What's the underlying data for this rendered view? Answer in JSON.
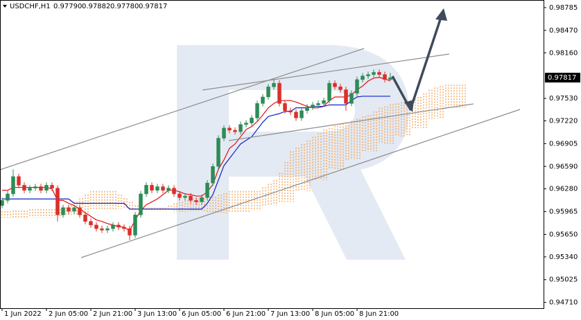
{
  "chart_data": {
    "type": "candlestick",
    "title": "USDCHF,H1",
    "header_values": [
      "0.97790",
      "0.97882",
      "0.97780",
      "0.97817"
    ],
    "up_color": "#2e8b57",
    "down_color": "#d9302a",
    "ylim": [
      0.9463,
      0.9889
    ],
    "yticks": [
      {
        "value": 0.98785,
        "label": "0.98785"
      },
      {
        "value": 0.9847,
        "label": "0.98470"
      },
      {
        "value": 0.9816,
        "label": "0.98160"
      },
      {
        "value": 0.9753,
        "label": "0.97530"
      },
      {
        "value": 0.9722,
        "label": "0.97220"
      },
      {
        "value": 0.96905,
        "label": "0.96905"
      },
      {
        "value": 0.9659,
        "label": "0.96590"
      },
      {
        "value": 0.9628,
        "label": "0.96280"
      },
      {
        "value": 0.95965,
        "label": "0.95965"
      },
      {
        "value": 0.9565,
        "label": "0.95650"
      },
      {
        "value": 0.9534,
        "label": "0.95340"
      },
      {
        "value": 0.95025,
        "label": "0.95025"
      },
      {
        "value": 0.9471,
        "label": "0.94710"
      }
    ],
    "current_price": {
      "value": 0.97817,
      "label": "0.97817"
    },
    "categories": [
      "1 Jun 2022",
      null,
      null,
      null,
      null,
      null,
      null,
      null,
      "2 Jun 05:00",
      null,
      null,
      null,
      null,
      null,
      null,
      null,
      "2 Jun 21:00",
      null,
      null,
      null,
      null,
      null,
      null,
      null,
      "3 Jun 13:00",
      null,
      null,
      null,
      null,
      null,
      null,
      null,
      "6 Jun 05:00",
      null,
      null,
      null,
      null,
      null,
      null,
      null,
      "6 Jun 21:00",
      null,
      null,
      null,
      null,
      null,
      null,
      null,
      "7 Jun 13:00",
      null,
      null,
      null,
      null,
      null,
      null,
      null,
      "8 Jun 05:00",
      null,
      null,
      null,
      null,
      null,
      null,
      null,
      "8 Jun 21:00",
      null,
      null,
      null,
      null,
      null,
      null,
      null,
      null,
      null,
      null,
      null,
      null,
      null,
      null,
      null,
      null,
      null,
      null,
      null
    ],
    "open": [
      0.9605,
      0.9612,
      0.9621,
      0.9645,
      0.9633,
      0.9626,
      0.9629,
      0.9631,
      0.9626,
      0.9633,
      0.9629,
      0.9592,
      0.9602,
      0.9597,
      0.9602,
      0.9592,
      0.9583,
      0.9578,
      0.9573,
      0.9571,
      0.9573,
      0.9578,
      0.9575,
      0.9573,
      0.9564,
      0.9592,
      0.9621,
      0.9633,
      0.9626,
      0.9631,
      0.9626,
      0.9629,
      0.9621,
      0.9616,
      0.9618,
      0.9612,
      0.961,
      0.9616,
      0.9636,
      0.9659,
      0.9698,
      0.9712,
      0.9709,
      0.9707,
      0.9717,
      0.9719,
      0.9726,
      0.9746,
      0.9755,
      0.9769,
      0.9774,
      0.9746,
      0.9736,
      0.9734,
      0.9726,
      0.9736,
      0.9741,
      0.9744,
      0.9746,
      0.975,
      0.9774,
      0.9769,
      0.9765,
      0.9746,
      0.976,
      0.9779,
      0.9784,
      0.9786,
      0.9789,
      0.9786,
      0.9779,
      null,
      null,
      null,
      null,
      null,
      null,
      null,
      null,
      null,
      null,
      null,
      null,
      null
    ],
    "high": [
      0.9616,
      0.9625,
      0.9655,
      0.9649,
      0.9637,
      0.9633,
      0.9635,
      0.9635,
      0.9637,
      0.9637,
      0.9633,
      0.9606,
      0.9606,
      0.9606,
      0.9606,
      0.9596,
      0.9587,
      0.9582,
      0.9577,
      0.9577,
      0.9582,
      0.9582,
      0.9579,
      0.9577,
      0.9596,
      0.9625,
      0.9637,
      0.9637,
      0.9635,
      0.9635,
      0.9633,
      0.9633,
      0.9625,
      0.9622,
      0.9622,
      0.9616,
      0.962,
      0.964,
      0.9663,
      0.9702,
      0.9716,
      0.9716,
      0.9713,
      0.9721,
      0.9723,
      0.973,
      0.975,
      0.9759,
      0.9773,
      0.978,
      0.9778,
      0.975,
      0.974,
      0.9738,
      0.974,
      0.9745,
      0.9748,
      0.975,
      0.9754,
      0.9778,
      0.9778,
      0.9773,
      0.9769,
      0.9764,
      0.9783,
      0.9788,
      0.979,
      0.9793,
      0.9793,
      0.979,
      0.97882,
      null,
      null,
      null,
      null,
      null,
      null,
      null,
      null,
      null,
      null,
      null,
      null,
      null
    ],
    "low": [
      0.9601,
      0.9608,
      0.9617,
      0.9629,
      0.9622,
      0.9622,
      0.9625,
      0.9622,
      0.9622,
      0.9625,
      0.9583,
      0.9588,
      0.9593,
      0.9593,
      0.9588,
      0.9579,
      0.9574,
      0.9569,
      0.9567,
      0.9567,
      0.9569,
      0.9571,
      0.9569,
      0.9557,
      0.956,
      0.9588,
      0.9617,
      0.9622,
      0.9622,
      0.9622,
      0.9622,
      0.9617,
      0.9612,
      0.9612,
      0.9608,
      0.9606,
      0.9606,
      0.9612,
      0.9632,
      0.9655,
      0.9694,
      0.9705,
      0.9703,
      0.9703,
      0.9713,
      0.9715,
      0.9722,
      0.9742,
      0.9751,
      0.9765,
      0.9742,
      0.9732,
      0.973,
      0.9722,
      0.9722,
      0.9732,
      0.9737,
      0.974,
      0.9742,
      0.9746,
      0.9765,
      0.9761,
      0.9736,
      0.9742,
      0.9756,
      0.9775,
      0.978,
      0.9782,
      0.9782,
      0.9775,
      0.9778,
      null,
      null,
      null,
      null,
      null,
      null,
      null,
      null,
      null,
      null,
      null,
      null,
      null
    ],
    "close": [
      0.9612,
      0.9621,
      0.9645,
      0.9633,
      0.9626,
      0.9629,
      0.9631,
      0.9626,
      0.9633,
      0.9629,
      0.9592,
      0.9602,
      0.9597,
      0.9602,
      0.9592,
      0.9583,
      0.9578,
      0.9573,
      0.9571,
      0.9573,
      0.9578,
      0.9575,
      0.9573,
      0.9564,
      0.9592,
      0.9621,
      0.9633,
      0.9626,
      0.9631,
      0.9626,
      0.9629,
      0.9621,
      0.9616,
      0.9618,
      0.9612,
      0.961,
      0.9616,
      0.9636,
      0.9659,
      0.9698,
      0.9712,
      0.9709,
      0.9707,
      0.9717,
      0.9719,
      0.9726,
      0.9746,
      0.9755,
      0.9769,
      0.9774,
      0.9746,
      0.9736,
      0.9734,
      0.9726,
      0.9736,
      0.9741,
      0.9744,
      0.9746,
      0.975,
      0.9774,
      0.9769,
      0.9765,
      0.9746,
      0.976,
      0.9779,
      0.9784,
      0.9786,
      0.9789,
      0.9786,
      0.9779,
      0.97817,
      null,
      null,
      null,
      null,
      null,
      null,
      null,
      null,
      null,
      null,
      null,
      null,
      null
    ],
    "lines": [
      {
        "color": "#e01010",
        "values": [
          0.9626,
          0.9626,
          0.963,
          0.963,
          0.963,
          0.963,
          0.963,
          0.963,
          0.963,
          0.9628,
          0.9612,
          0.9612,
          0.9608,
          0.9605,
          0.96,
          0.9595,
          0.959,
          0.9585,
          0.9583,
          0.958,
          0.9578,
          0.9576,
          0.9575,
          0.957,
          0.9585,
          0.9598,
          0.9606,
          0.961,
          0.9614,
          0.962,
          0.9626,
          0.9626,
          0.9624,
          0.9621,
          0.962,
          0.9618,
          0.9618,
          0.9624,
          0.9634,
          0.9655,
          0.9668,
          0.9684,
          0.969,
          0.97,
          0.971,
          0.9714,
          0.9721,
          0.973,
          0.974,
          0.9746,
          0.975,
          0.975,
          0.975,
          0.9748,
          0.9745,
          0.9742,
          0.974,
          0.974,
          0.9742,
          0.975,
          0.9755,
          0.9755,
          0.9755,
          0.9758,
          0.9765,
          0.977,
          0.9777,
          0.9781,
          0.9782,
          0.978,
          0.9777,
          null,
          null,
          null,
          null,
          null,
          null,
          null,
          null,
          null,
          null,
          null,
          null,
          null
        ]
      },
      {
        "color": "#1020c8",
        "values": [
          0.9614,
          0.9614,
          0.9614,
          0.9614,
          0.9614,
          0.9614,
          0.9614,
          0.9614,
          0.9614,
          0.9614,
          0.9614,
          0.9614,
          0.9614,
          0.9608,
          0.9608,
          0.9608,
          0.9608,
          0.9608,
          0.9608,
          0.9608,
          0.9608,
          0.9608,
          0.9608,
          0.96,
          0.96,
          0.96,
          0.96,
          0.96,
          0.96,
          0.96,
          0.96,
          0.96,
          0.96,
          0.96,
          0.96,
          0.96,
          0.96,
          0.9608,
          0.962,
          0.964,
          0.966,
          0.967,
          0.968,
          0.969,
          0.9695,
          0.97,
          0.971,
          0.972,
          0.9728,
          0.973,
          0.9732,
          0.9735,
          0.9735,
          0.974,
          0.974,
          0.974,
          0.9742,
          0.9742,
          0.9742,
          0.9744,
          0.9744,
          0.9744,
          0.9744,
          0.975,
          0.9755,
          0.9756,
          0.9756,
          0.9756,
          0.9756,
          0.9756,
          0.9756,
          null,
          null,
          null,
          null,
          null,
          null,
          null,
          null,
          null,
          null,
          null,
          null,
          null
        ]
      }
    ],
    "cloud": {
      "color": "#f0a050",
      "upper": [
        0.9597,
        0.9597,
        0.9598,
        0.9598,
        0.9598,
        0.96,
        0.96,
        0.96,
        0.96,
        0.96,
        0.96,
        0.9602,
        0.9605,
        0.961,
        0.9615,
        0.962,
        0.9625,
        0.9625,
        0.9625,
        0.9625,
        0.9625,
        0.962,
        0.9615,
        0.961,
        0.9605,
        0.9602,
        0.9602,
        0.9602,
        0.9602,
        0.9602,
        0.9605,
        0.9608,
        0.961,
        0.9612,
        0.9615,
        0.9615,
        0.9615,
        0.9617,
        0.9617,
        0.962,
        0.9622,
        0.9625,
        0.9625,
        0.9625,
        0.9625,
        0.9625,
        0.9625,
        0.963,
        0.9635,
        0.964,
        0.965,
        0.9665,
        0.968,
        0.9685,
        0.969,
        0.9695,
        0.97,
        0.9705,
        0.971,
        0.9712,
        0.9715,
        0.9718,
        0.972,
        0.9722,
        0.9725,
        0.9728,
        0.973,
        0.9735,
        0.974,
        0.9742,
        0.9745,
        0.9746,
        0.9748,
        0.975,
        0.9752,
        0.9755,
        0.976,
        0.9765,
        0.9768,
        0.977,
        0.9772,
        0.9772,
        0.9772,
        0.9772
      ],
      "lower": [
        0.9588,
        0.9588,
        0.9588,
        0.9588,
        0.9588,
        0.9588,
        0.9588,
        0.9588,
        0.9588,
        0.9588,
        0.9588,
        0.9592,
        0.9592,
        0.9592,
        0.9592,
        0.9592,
        0.96,
        0.96,
        0.96,
        0.96,
        0.96,
        0.96,
        0.96,
        0.9598,
        0.9598,
        0.9598,
        0.9598,
        0.9598,
        0.9598,
        0.9598,
        0.9598,
        0.9596,
        0.9596,
        0.9596,
        0.9596,
        0.9596,
        0.9596,
        0.9594,
        0.9594,
        0.9594,
        0.9594,
        0.9596,
        0.9596,
        0.9596,
        0.9596,
        0.9598,
        0.9598,
        0.9605,
        0.9605,
        0.9605,
        0.961,
        0.961,
        0.961,
        0.9625,
        0.9625,
        0.9625,
        0.964,
        0.964,
        0.964,
        0.9655,
        0.9655,
        0.9655,
        0.9668,
        0.9668,
        0.9668,
        0.968,
        0.968,
        0.968,
        0.969,
        0.969,
        0.969,
        0.97,
        0.97,
        0.97,
        0.9712,
        0.9712,
        0.9712,
        0.9725,
        0.9725,
        0.9725,
        0.974,
        0.974,
        0.974,
        0.974
      ]
    }
  }
}
